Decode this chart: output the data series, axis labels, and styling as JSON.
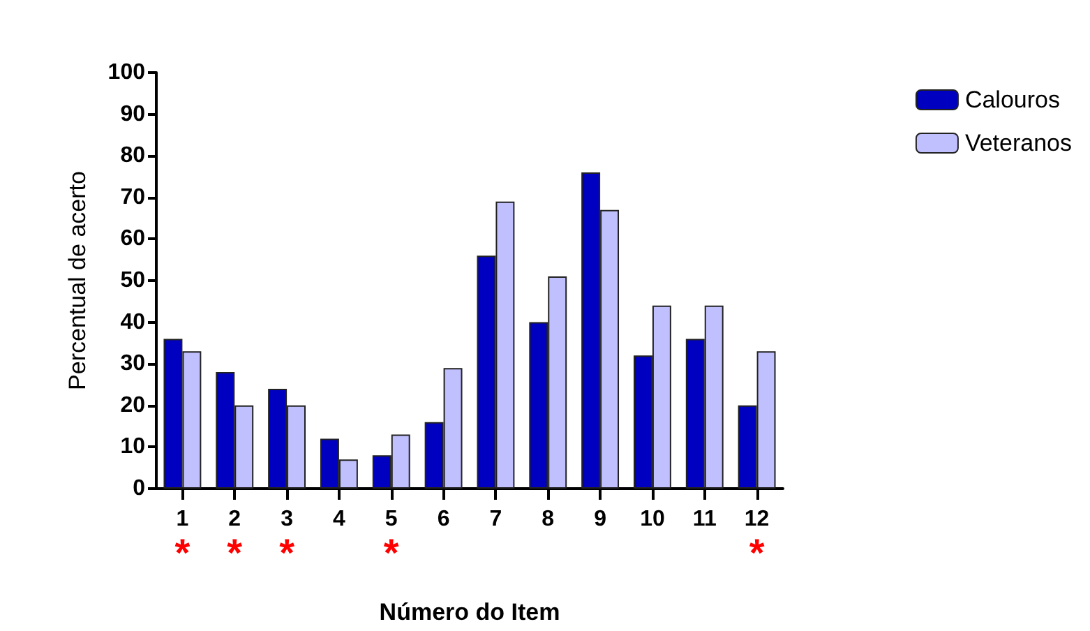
{
  "chart_data": {
    "type": "bar",
    "xlabel": "Número do Item",
    "ylabel": "Percentual de acerto",
    "categories": [
      "1\n*",
      "2\n*",
      "3\n*",
      "4",
      "5\n*",
      "6",
      "7",
      "8",
      "9",
      "10",
      "11",
      "12\n*"
    ],
    "series": [
      {
        "name": "Calouros",
        "color": "#0000c0",
        "values": [
          36,
          28,
          24,
          12,
          8,
          16,
          56,
          40,
          76,
          32,
          36,
          20
        ]
      },
      {
        "name": "Veteranos",
        "color": "#c0c0ff",
        "values": [
          33,
          20,
          20,
          7,
          13,
          29,
          69,
          51,
          67,
          44,
          44,
          33
        ]
      }
    ],
    "ylim": [
      0,
      100
    ],
    "yticks": [
      0,
      10,
      20,
      30,
      40,
      50,
      60,
      70,
      80,
      90,
      100
    ],
    "grid": false,
    "legend": "top right"
  }
}
